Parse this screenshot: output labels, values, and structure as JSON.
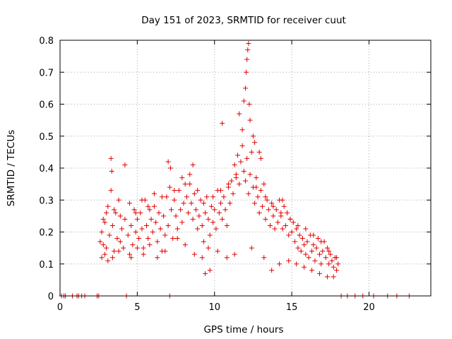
{
  "chart_data": {
    "type": "scatter",
    "title": "Day 151 of 2023, SRMTID for receiver cuut",
    "xlabel": "GPS time / hours",
    "ylabel": "SRMTID / TECUs",
    "xlim": [
      0,
      24
    ],
    "ylim": [
      0,
      0.8
    ],
    "xticks": [
      0,
      5,
      10,
      15,
      20
    ],
    "yticks": [
      0,
      0.1,
      0.2,
      0.3,
      0.4,
      0.5,
      0.6,
      0.7,
      0.8
    ],
    "xtick_labels": [
      "0",
      "5",
      "10",
      "15",
      "20"
    ],
    "ytick_labels": [
      "0",
      "0.1",
      "0.2",
      "0.3",
      "0.4",
      "0.5",
      "0.6",
      "0.7",
      "0.8"
    ],
    "grid": true,
    "marker": "+",
    "color": "#e00000",
    "series": [
      {
        "name": "SRMTID",
        "x": [
          0.1,
          0.25,
          0.35,
          0.8,
          1.1,
          1.2,
          1.4,
          1.6,
          2.4,
          2.5,
          4.3,
          7.1,
          18.2,
          18.6,
          19.1,
          19.6,
          20.3,
          21.2,
          21.8,
          22.6,
          2.6,
          2.7,
          2.8,
          2.9,
          3.0,
          3.1,
          3.2,
          3.3,
          3.4,
          3.5,
          3.6,
          3.7,
          3.8,
          3.9,
          4.0,
          4.1,
          4.2,
          4.4,
          4.5,
          4.6,
          4.7,
          4.8,
          4.9,
          5.0,
          5.1,
          5.2,
          5.3,
          5.4,
          5.5,
          5.6,
          5.7,
          5.8,
          5.9,
          6.0,
          6.1,
          6.2,
          6.3,
          6.4,
          6.5,
          6.6,
          6.7,
          6.8,
          6.9,
          7.0,
          7.2,
          7.3,
          7.4,
          7.5,
          7.6,
          7.7,
          7.8,
          7.9,
          8.0,
          8.1,
          8.2,
          8.3,
          8.4,
          8.5,
          8.6,
          8.7,
          8.8,
          8.9,
          9.0,
          9.1,
          9.2,
          9.3,
          9.4,
          9.5,
          9.6,
          9.7,
          9.8,
          9.9,
          10.0,
          10.1,
          10.2,
          10.3,
          10.4,
          10.5,
          10.6,
          10.7,
          10.8,
          10.9,
          11.0,
          11.1,
          11.2,
          11.3,
          11.4,
          11.5,
          11.6,
          11.7,
          11.8,
          11.9,
          12.0,
          12.1,
          12.2,
          12.3,
          12.4,
          12.5,
          12.6,
          12.7,
          12.8,
          12.9,
          13.0,
          13.1,
          13.2,
          13.3,
          13.4,
          13.5,
          13.6,
          13.7,
          13.8,
          13.9,
          14.0,
          14.1,
          14.2,
          14.3,
          14.4,
          14.5,
          14.6,
          14.7,
          14.8,
          14.9,
          15.0,
          15.1,
          15.2,
          15.3,
          15.4,
          15.5,
          15.6,
          15.7,
          15.8,
          15.9,
          16.0,
          16.1,
          16.2,
          16.3,
          16.4,
          16.5,
          16.6,
          16.7,
          16.8,
          16.9,
          17.0,
          17.1,
          17.2,
          17.3,
          17.4,
          17.5,
          17.6,
          17.7,
          17.8,
          17.9,
          18.0,
          3.3,
          3.35,
          4.2,
          7.0,
          10.5,
          11.6,
          11.8,
          11.9,
          12.0,
          12.05,
          12.1,
          12.15,
          12.2,
          12.25,
          12.3,
          12.5,
          12.6,
          12.9,
          13.0,
          7.15,
          8.6,
          9.4,
          9.7,
          14.4,
          2.7,
          2.9,
          3.1,
          3.4,
          3.8,
          4.6,
          5.0,
          5.4,
          5.8,
          6.3,
          6.8,
          7.6,
          8.1,
          8.7,
          9.2,
          9.6,
          10.2,
          10.8,
          11.3,
          12.4,
          13.2,
          13.7,
          14.2,
          14.8,
          15.3,
          15.8,
          16.3,
          16.8,
          17.3,
          17.7,
          2.8,
          3.0,
          3.5,
          3.9,
          4.5,
          4.9,
          5.3,
          5.7,
          6.1,
          6.6,
          7.1,
          7.4,
          7.9,
          8.4,
          8.9,
          9.3,
          9.9,
          10.4,
          10.9,
          11.4,
          12.7,
          13.3,
          13.8,
          14.3,
          14.9,
          15.4,
          15.9,
          16.4,
          16.9,
          17.4,
          17.9
        ],
        "y": [
          0,
          0,
          0,
          0,
          0,
          0,
          0,
          0,
          0,
          0,
          0,
          0,
          0,
          0,
          0,
          0,
          0,
          0,
          0,
          0,
          0.17,
          0.2,
          0.16,
          0.23,
          0.15,
          0.28,
          0.19,
          0.33,
          0.22,
          0.14,
          0.26,
          0.18,
          0.3,
          0.17,
          0.21,
          0.15,
          0.24,
          0.19,
          0.13,
          0.22,
          0.16,
          0.27,
          0.2,
          0.24,
          0.18,
          0.26,
          0.21,
          0.15,
          0.3,
          0.22,
          0.18,
          0.27,
          0.24,
          0.2,
          0.28,
          0.23,
          0.17,
          0.26,
          0.21,
          0.14,
          0.25,
          0.19,
          0.31,
          0.22,
          0.27,
          0.18,
          0.3,
          0.25,
          0.21,
          0.33,
          0.27,
          0.23,
          0.29,
          0.35,
          0.31,
          0.26,
          0.38,
          0.29,
          0.24,
          0.32,
          0.27,
          0.21,
          0.25,
          0.3,
          0.22,
          0.17,
          0.26,
          0.31,
          0.24,
          0.19,
          0.28,
          0.23,
          0.27,
          0.21,
          0.33,
          0.26,
          0.29,
          0.24,
          0.31,
          0.27,
          0.22,
          0.34,
          0.29,
          0.36,
          0.32,
          0.41,
          0.38,
          0.44,
          0.35,
          0.42,
          0.47,
          0.39,
          0.36,
          0.43,
          0.32,
          0.38,
          0.45,
          0.34,
          0.29,
          0.37,
          0.31,
          0.26,
          0.33,
          0.28,
          0.35,
          0.24,
          0.3,
          0.27,
          0.22,
          0.29,
          0.25,
          0.21,
          0.27,
          0.23,
          0.3,
          0.25,
          0.21,
          0.28,
          0.22,
          0.26,
          0.19,
          0.24,
          0.2,
          0.23,
          0.17,
          0.21,
          0.15,
          0.19,
          0.14,
          0.18,
          0.16,
          0.13,
          0.17,
          0.12,
          0.19,
          0.14,
          0.16,
          0.11,
          0.15,
          0.18,
          0.13,
          0.1,
          0.14,
          0.17,
          0.12,
          0.15,
          0.1,
          0.13,
          0.11,
          0.09,
          0.12,
          0.08,
          0.1,
          0.43,
          0.39,
          0.41,
          0.42,
          0.54,
          0.57,
          0.52,
          0.61,
          0.65,
          0.7,
          0.74,
          0.77,
          0.79,
          0.6,
          0.55,
          0.5,
          0.48,
          0.45,
          0.43,
          0.4,
          0.41,
          0.07,
          0.08,
          0.3,
          0.12,
          0.13,
          0.11,
          0.12,
          0.14,
          0.12,
          0.15,
          0.13,
          0.16,
          0.12,
          0.14,
          0.18,
          0.16,
          0.13,
          0.12,
          0.15,
          0.14,
          0.12,
          0.13,
          0.15,
          0.12,
          0.08,
          0.1,
          0.11,
          0.1,
          0.09,
          0.08,
          0.07,
          0.06,
          0.06,
          0.24,
          0.26,
          0.27,
          0.25,
          0.29,
          0.26,
          0.3,
          0.28,
          0.32,
          0.31,
          0.34,
          0.33,
          0.37,
          0.35,
          0.33,
          0.29,
          0.31,
          0.33,
          0.35,
          0.37,
          0.34,
          0.31,
          0.28,
          0.26,
          0.24,
          0.22,
          0.21,
          0.19,
          0.17,
          0.14,
          0.12
        ]
      }
    ]
  }
}
